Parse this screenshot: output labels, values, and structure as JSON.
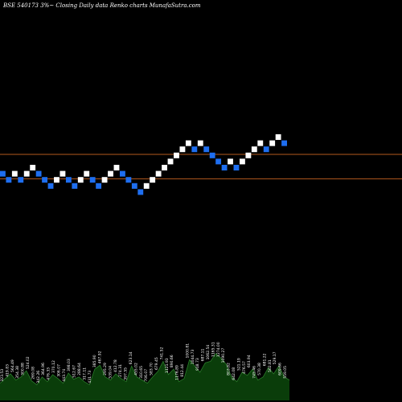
{
  "chart_data": {
    "type": "renko",
    "title": "BSE 540173 3%~  Closing Daily data  Renko  charts MunafaSutra.com",
    "up_color": "#ffffff",
    "down_color": "#1e6ef0",
    "reference_line_color": "#b45a1e",
    "volume_fill_color": "#0a3d0a",
    "volume_line_color": "#2a7a2a",
    "reference_levels": [
      17,
      13
    ],
    "price_range": [
      0,
      40
    ],
    "bricks": [
      {
        "level": 13,
        "dir": "down"
      },
      {
        "level": 12,
        "dir": "down"
      },
      {
        "level": 13,
        "dir": "up"
      },
      {
        "level": 12,
        "dir": "down"
      },
      {
        "level": 13,
        "dir": "up"
      },
      {
        "level": 14,
        "dir": "up"
      },
      {
        "level": 13,
        "dir": "down"
      },
      {
        "level": 12,
        "dir": "down"
      },
      {
        "level": 11,
        "dir": "down"
      },
      {
        "level": 12,
        "dir": "up"
      },
      {
        "level": 13,
        "dir": "up"
      },
      {
        "level": 12,
        "dir": "down"
      },
      {
        "level": 11,
        "dir": "down"
      },
      {
        "level": 12,
        "dir": "up"
      },
      {
        "level": 13,
        "dir": "up"
      },
      {
        "level": 12,
        "dir": "down"
      },
      {
        "level": 11,
        "dir": "down"
      },
      {
        "level": 12,
        "dir": "up"
      },
      {
        "level": 13,
        "dir": "up"
      },
      {
        "level": 14,
        "dir": "up"
      },
      {
        "level": 13,
        "dir": "down"
      },
      {
        "level": 12,
        "dir": "down"
      },
      {
        "level": 11,
        "dir": "down"
      },
      {
        "level": 10,
        "dir": "down"
      },
      {
        "level": 11,
        "dir": "up"
      },
      {
        "level": 12,
        "dir": "up"
      },
      {
        "level": 13,
        "dir": "up"
      },
      {
        "level": 14,
        "dir": "up"
      },
      {
        "level": 15,
        "dir": "up"
      },
      {
        "level": 16,
        "dir": "up"
      },
      {
        "level": 17,
        "dir": "up"
      },
      {
        "level": 18,
        "dir": "up"
      },
      {
        "level": 17,
        "dir": "down"
      },
      {
        "level": 18,
        "dir": "up"
      },
      {
        "level": 17,
        "dir": "down"
      },
      {
        "level": 16,
        "dir": "down"
      },
      {
        "level": 15,
        "dir": "down"
      },
      {
        "level": 14,
        "dir": "down"
      },
      {
        "level": 15,
        "dir": "up"
      },
      {
        "level": 14,
        "dir": "down"
      },
      {
        "level": 15,
        "dir": "up"
      },
      {
        "level": 16,
        "dir": "up"
      },
      {
        "level": 17,
        "dir": "up"
      },
      {
        "level": 18,
        "dir": "up"
      },
      {
        "level": 17,
        "dir": "down"
      },
      {
        "level": 18,
        "dir": "up"
      },
      {
        "level": 19,
        "dir": "up"
      },
      {
        "level": 18,
        "dir": "down"
      }
    ],
    "volume": {
      "values": [
        22,
        28,
        34,
        26,
        30,
        38,
        25,
        20,
        30,
        24,
        33,
        28,
        22,
        35,
        27,
        30,
        24,
        20,
        40,
        45,
        30,
        26,
        34,
        28,
        24,
        44,
        30,
        26,
        22,
        30,
        37,
        50,
        33,
        40,
        24,
        28,
        52,
        44,
        36,
        48,
        50,
        60,
        54,
        46,
        30,
        24,
        36,
        32,
        40,
        26,
        30,
        42,
        34,
        44,
        30,
        26
      ],
      "range": [
        0,
        70
      ],
      "labels": [
        "323.53",
        "419.83",
        "564.49",
        "354.38",
        "300.88",
        "524.02",
        "269.08",
        "342.26",
        "364.96",
        "476.33",
        "370.12",
        "306.07",
        "443.74",
        "398.03",
        "512.67",
        "288.64",
        "317.11",
        "431.73",
        "385.90",
        "467.92",
        "295.29",
        "539.04",
        "412.78",
        "274.31",
        "397.55",
        "623.14",
        "455.02",
        "310.65",
        "706.07",
        "583.70",
        "679.45",
        "741.52",
        "1121.93",
        "890.66",
        "1176.89",
        "812.44",
        "1000.81",
        "1044.73",
        "918.73",
        "687.11",
        "1062.54",
        "1165.31",
        "1274.00",
        "1090.27",
        "803.82",
        "642.08",
        "521.19",
        "476.57",
        "603.94",
        "745.46",
        "570.38",
        "681.22",
        "502.81",
        "529.17",
        "609.66",
        "559.05"
      ]
    }
  }
}
